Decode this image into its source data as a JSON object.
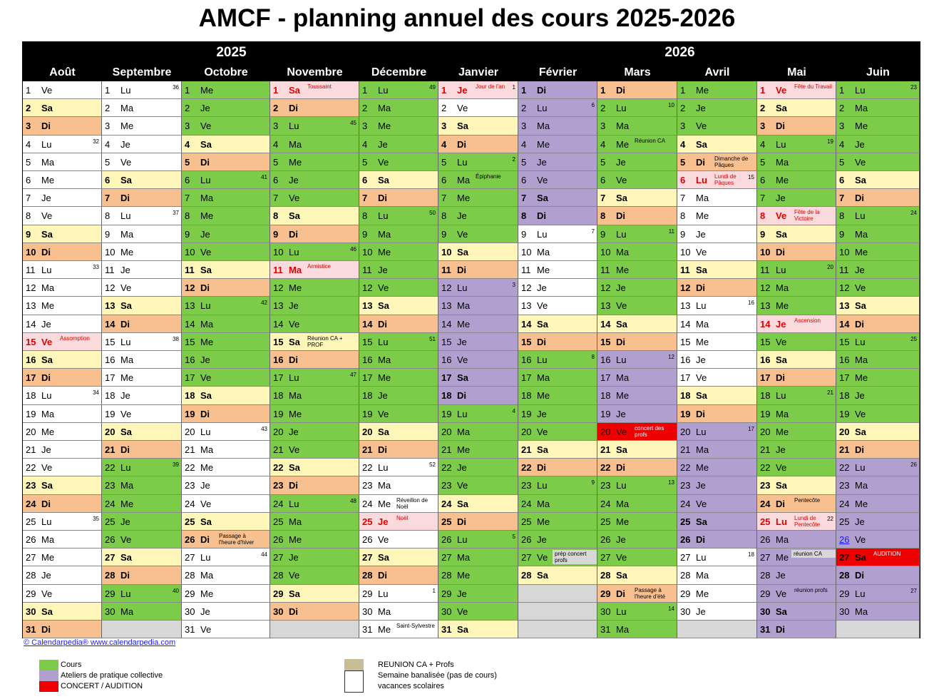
{
  "title": "AMCF - planning annuel des cours 2025-2026",
  "years": [
    "2025",
    "2026"
  ],
  "colors": {
    "cours": "#7ccc4a",
    "atelier": "#b19fcf",
    "concert": "#ee0000",
    "reunion": "#c9bd98",
    "weekend_sa": "#fff6b9",
    "weekend_di": "#f9c08f",
    "holiday": "#fadadd",
    "grey": "#d7d7d7"
  },
  "months": [
    {
      "name": "Août",
      "first_dow": 4,
      "len": 31,
      "weeks": {
        "4": "32",
        "11": "33",
        "18": "34",
        "25": "35"
      },
      "holidays": {
        "15": "Assomption"
      },
      "notes": {},
      "green": [],
      "purple": [],
      "special": {}
    },
    {
      "name": "Septembre",
      "first_dow": 0,
      "len": 30,
      "weeks": {
        "1": "36",
        "8": "37",
        "15": "38",
        "22": "39",
        "29": "40"
      },
      "holidays": {},
      "notes": {},
      "green": [
        22,
        23,
        24,
        25,
        26,
        27,
        28,
        29,
        30
      ],
      "purple": [],
      "special": {}
    },
    {
      "name": "Octobre",
      "first_dow": 2,
      "len": 31,
      "weeks": {
        "6": "41",
        "13": "42",
        "20": "43",
        "27": "44"
      },
      "holidays": {},
      "notes": {
        "26": "Passage à l'heure d'hiver"
      },
      "green": [
        1,
        2,
        3,
        4,
        5,
        6,
        7,
        8,
        9,
        10,
        11,
        12,
        13,
        14,
        15,
        16,
        17,
        18,
        19
      ],
      "purple": [],
      "special": {}
    },
    {
      "name": "Novembre",
      "first_dow": 5,
      "len": 30,
      "weeks": {
        "3": "45",
        "10": "46",
        "17": "47",
        "24": "48"
      },
      "holidays": {
        "1": "Toussaint",
        "11": "Armistice"
      },
      "notes": {
        "15": "Réunion CA + PROF"
      },
      "green": [
        3,
        4,
        5,
        6,
        7,
        8,
        9,
        10,
        11,
        12,
        13,
        14,
        15,
        16,
        17,
        18,
        19,
        20,
        21,
        22,
        23,
        24,
        25,
        26,
        27,
        28,
        29,
        30
      ],
      "purple": [],
      "special": {}
    },
    {
      "name": "Décembre",
      "first_dow": 0,
      "len": 31,
      "weeks": {
        "1": "49",
        "8": "50",
        "15": "51",
        "22": "52",
        "29": "1"
      },
      "holidays": {
        "25": "Noël"
      },
      "notes": {
        "24": "Réveillon de Noël",
        "31": "Saint-Sylvestre"
      },
      "green": [
        1,
        2,
        3,
        4,
        5,
        6,
        7,
        8,
        9,
        10,
        11,
        12,
        13,
        14,
        15,
        16,
        17,
        18,
        19,
        20,
        21
      ],
      "purple": [],
      "special": {}
    },
    {
      "name": "Janvier",
      "first_dow": 3,
      "len": 31,
      "weeks": {
        "1": "1",
        "5": "2",
        "12": "3",
        "19": "4",
        "26": "5"
      },
      "holidays": {
        "1": "Jour de l'an"
      },
      "notes": {
        "6": "Épiphanie"
      },
      "green": [
        5,
        6,
        7,
        8,
        9,
        10,
        11,
        19,
        20,
        21,
        22,
        23,
        24,
        25,
        26,
        27,
        28,
        29,
        30,
        31
      ],
      "purple": [
        12,
        13,
        14,
        15,
        16,
        17,
        18
      ],
      "special": {}
    },
    {
      "name": "Février",
      "first_dow": 6,
      "len": 28,
      "weeks": {
        "2": "6",
        "9": "7",
        "16": "8",
        "23": "9"
      },
      "holidays": {},
      "notes": {
        "27": "prép concert profs"
      },
      "green": [
        16,
        17,
        18,
        19,
        20,
        21,
        22,
        23,
        24,
        25,
        26,
        27,
        28
      ],
      "purple": [
        1,
        2,
        3,
        4,
        5,
        6,
        7,
        8
      ],
      "special": {
        "27": "grey"
      }
    },
    {
      "name": "Mars",
      "first_dow": 6,
      "len": 31,
      "weeks": {
        "2": "10",
        "9": "11",
        "16": "12",
        "23": "13",
        "30": "14"
      },
      "holidays": {},
      "notes": {
        "4": "Réunion CA",
        "20": "concert des profs",
        "29": "Passage à l'heure d'été"
      },
      "green": [
        1,
        2,
        3,
        4,
        5,
        6,
        7,
        8,
        9,
        10,
        11,
        12,
        13,
        14,
        15,
        20,
        21,
        22,
        23,
        24,
        25,
        26,
        27,
        28,
        29,
        30,
        31
      ],
      "purple": [
        16,
        17,
        18,
        19
      ],
      "special": {
        "20": "red"
      }
    },
    {
      "name": "Avril",
      "first_dow": 2,
      "len": 30,
      "weeks": {
        "6": "15",
        "13": "16",
        "20": "17",
        "27": "18"
      },
      "holidays": {
        "6": "Lundi de Pâques"
      },
      "notes": {
        "5": "Dimanche de Pâques"
      },
      "green": [
        1,
        2,
        3,
        4,
        5
      ],
      "purple": [
        20,
        21,
        22,
        23,
        24,
        25,
        26
      ],
      "special": {}
    },
    {
      "name": "Mai",
      "first_dow": 4,
      "len": 31,
      "weeks": {
        "4": "19",
        "11": "20",
        "18": "21",
        "25": "22"
      },
      "holidays": {
        "1": "Fête du Travail",
        "8": "Fête de la Victoire",
        "14": "Ascension",
        "25": "Lundi de Pentecôte"
      },
      "notes": {
        "24": "Pentecôte",
        "27": "réunion CA",
        "29": "réunion profs"
      },
      "green": [
        4,
        5,
        6,
        7,
        8,
        9,
        10,
        11,
        12,
        13,
        14,
        15,
        16,
        17,
        18,
        19,
        20,
        21,
        22,
        23,
        24,
        25
      ],
      "purple": [
        26,
        27,
        28,
        29,
        30,
        31
      ],
      "special": {
        "27": "grey"
      }
    },
    {
      "name": "Juin",
      "first_dow": 0,
      "len": 30,
      "weeks": {
        "1": "23",
        "8": "24",
        "15": "25",
        "22": "26",
        "29": "27"
      },
      "holidays": {},
      "notes": {
        "27": "AUDITION"
      },
      "green": [
        1,
        2,
        3,
        4,
        5,
        6,
        7,
        8,
        9,
        10,
        11,
        12,
        13,
        14,
        15,
        16,
        17,
        18,
        19,
        20,
        21
      ],
      "purple": [
        22,
        23,
        24,
        25,
        26,
        27,
        28,
        29,
        30
      ],
      "special": {
        "27": "red"
      }
    }
  ],
  "day_abbr": [
    "Lu",
    "Ma",
    "Me",
    "Je",
    "Ve",
    "Sa",
    "Di"
  ],
  "footer_link": "© Calendarpedia®   www.calendarpedia.com",
  "legend_left": [
    "Cours",
    "Ateliers de pratique collective",
    "CONCERT / AUDITION"
  ],
  "legend_right": [
    "REUNION CA + Profs",
    "Semaine banalisée (pas de cours)",
    "vacances scolaires"
  ]
}
